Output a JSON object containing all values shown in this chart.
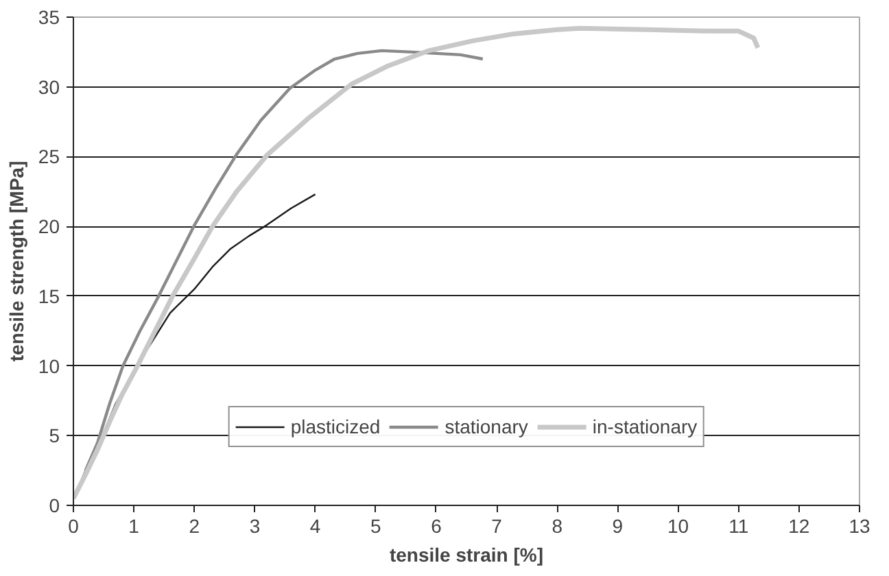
{
  "chart_data": {
    "type": "line",
    "xlabel": "tensile strain [%]",
    "ylabel": "tensile strength [MPa]",
    "xlim": [
      0,
      13
    ],
    "xticks": [
      0,
      1,
      2,
      3,
      4,
      5,
      6,
      7,
      8,
      9,
      10,
      11,
      12,
      13
    ],
    "ylim": [
      0,
      35
    ],
    "yticks": [
      0,
      5,
      10,
      15,
      20,
      25,
      30,
      35
    ],
    "grid": "y",
    "legend": "bottom",
    "marker": "none",
    "line_style": "solid",
    "series": [
      {
        "name": "plasticized",
        "color": "#1a1a1a",
        "x": [
          0,
          0.2,
          0.4,
          0.7,
          1.05,
          1.6,
          2.0,
          2.3,
          2.6,
          2.9,
          3.2,
          3.6,
          4.0
        ],
        "values": [
          0.5,
          2.5,
          4.2,
          7.3,
          10,
          13.8,
          15.5,
          17.1,
          18.4,
          19.3,
          20.1,
          21.3,
          22.3
        ]
      },
      {
        "name": "stationary",
        "color": "#8a8a8a",
        "x": [
          0.2,
          0.4,
          0.6,
          0.82,
          1.1,
          1.41,
          1.7,
          1.99,
          2.35,
          2.69,
          3.1,
          3.58,
          4.0,
          4.32,
          4.7,
          5.1,
          5.6,
          6.0,
          6.4,
          6.77
        ],
        "values": [
          2.5,
          4.5,
          7.3,
          10,
          12.5,
          15,
          17.5,
          20,
          22.7,
          25.1,
          27.6,
          29.9,
          31.2,
          32.0,
          32.4,
          32.6,
          32.5,
          32.4,
          32.3,
          32.0
        ]
      },
      {
        "name": "in-stationary",
        "color": "#c8c8c8",
        "x": [
          0,
          0.2,
          0.4,
          0.6,
          0.8,
          1.06,
          1.35,
          1.64,
          2.0,
          2.3,
          2.7,
          3.2,
          3.9,
          4.6,
          5.2,
          5.88,
          6.6,
          7.28,
          8.0,
          8.38,
          9.5,
          10.5,
          11.0,
          11.25,
          11.32
        ],
        "values": [
          0.5,
          2.2,
          4.0,
          6.0,
          7.9,
          10,
          12.5,
          15,
          17.7,
          20,
          22.5,
          25.1,
          27.8,
          30.2,
          31.5,
          32.6,
          33.3,
          33.8,
          34.1,
          34.2,
          34.1,
          34.0,
          34.0,
          33.5,
          32.8
        ]
      }
    ]
  }
}
